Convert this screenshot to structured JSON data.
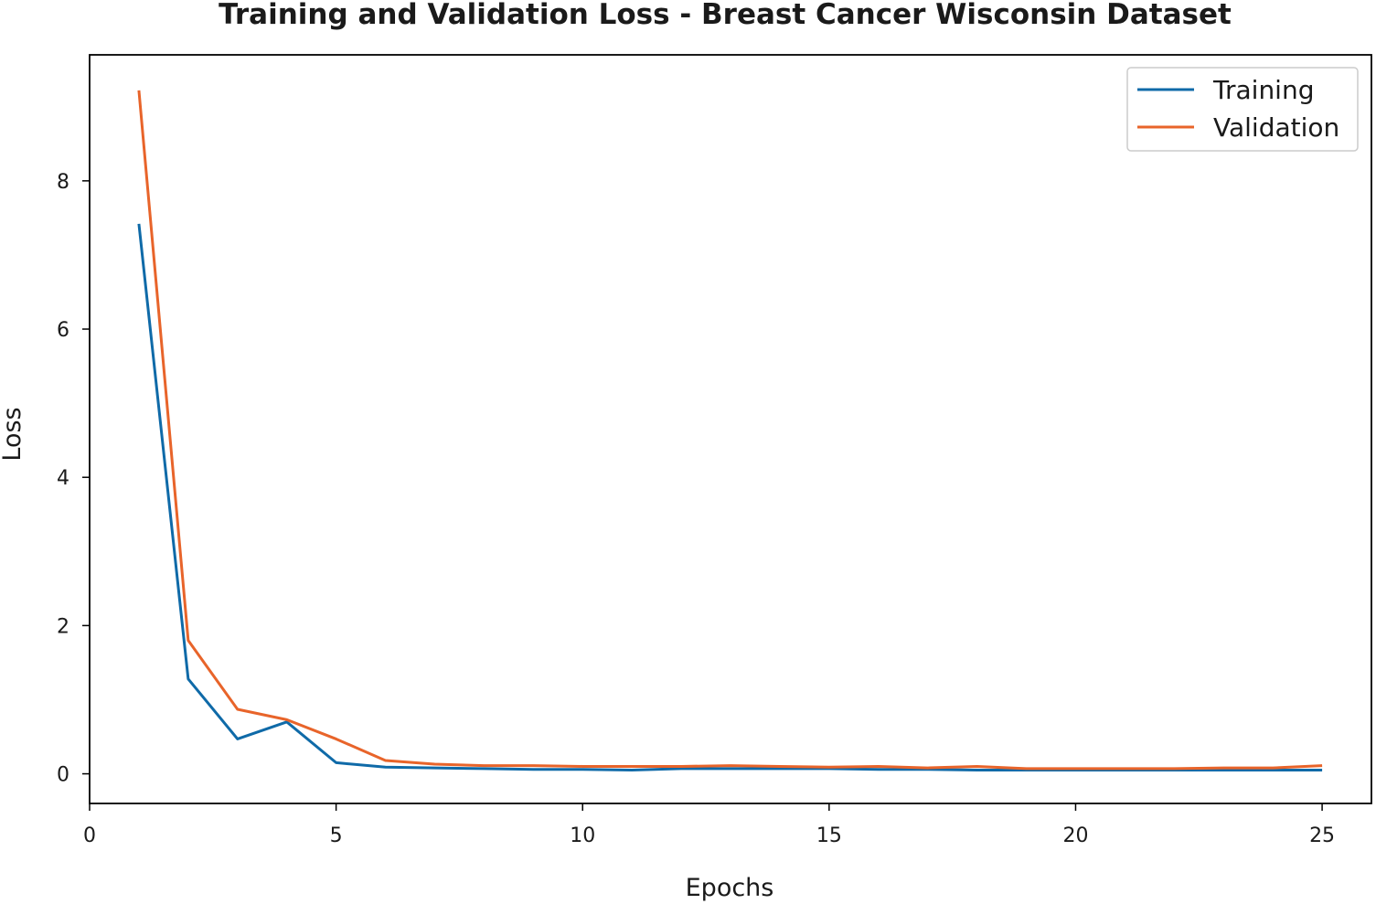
{
  "chart_data": {
    "type": "line",
    "title": "Training and Validation Loss - Breast Cancer Wisconsin Dataset",
    "xlabel": "Epochs",
    "ylabel": "Loss",
    "xlim": [
      0,
      26
    ],
    "ylim": [
      -0.4,
      9.7
    ],
    "xticks": [
      0,
      5,
      10,
      15,
      20,
      25
    ],
    "yticks": [
      0,
      2,
      4,
      6,
      8
    ],
    "grid": false,
    "legend_position": "top-right",
    "x": [
      1,
      2,
      3,
      4,
      5,
      6,
      7,
      8,
      9,
      10,
      11,
      12,
      13,
      14,
      15,
      16,
      17,
      18,
      19,
      20,
      21,
      22,
      23,
      24,
      25
    ],
    "series": [
      {
        "name": "Training",
        "color": "#0f6aa8",
        "values": [
          7.42,
          1.28,
          0.47,
          0.7,
          0.15,
          0.09,
          0.08,
          0.07,
          0.06,
          0.06,
          0.05,
          0.07,
          0.07,
          0.07,
          0.07,
          0.06,
          0.06,
          0.05,
          0.05,
          0.05,
          0.05,
          0.05,
          0.05,
          0.05,
          0.05
        ]
      },
      {
        "name": "Validation",
        "color": "#e8642a",
        "values": [
          9.22,
          1.8,
          0.87,
          0.73,
          0.47,
          0.18,
          0.13,
          0.11,
          0.11,
          0.1,
          0.1,
          0.1,
          0.11,
          0.1,
          0.09,
          0.1,
          0.08,
          0.1,
          0.07,
          0.07,
          0.07,
          0.07,
          0.08,
          0.08,
          0.11
        ]
      }
    ]
  }
}
